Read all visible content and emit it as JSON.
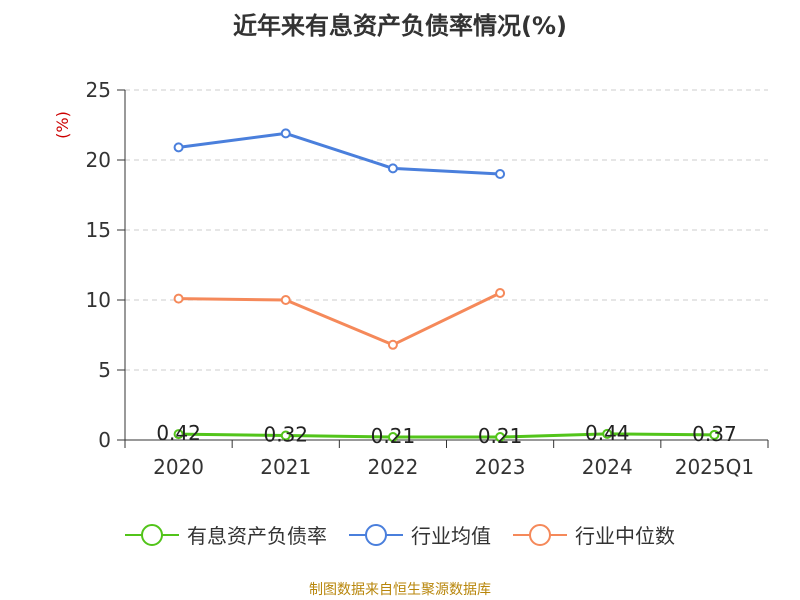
{
  "chart_data": {
    "type": "line",
    "title": "近年来有息资产负债率情况(%)",
    "ylabel": "(%)",
    "xlabel": "",
    "categories": [
      "2020",
      "2021",
      "2022",
      "2023",
      "2024",
      "2025Q1"
    ],
    "ylim": [
      0,
      25
    ],
    "yticks": [
      0,
      5,
      10,
      15,
      20,
      25
    ],
    "grid": true,
    "legend_position": "bottom",
    "series": [
      {
        "name": "有息资产负债率",
        "color": "#52c41a",
        "values": [
          0.42,
          0.32,
          0.21,
          0.21,
          0.44,
          0.37
        ],
        "labels": [
          "0.42",
          "0.32",
          "0.21",
          "0.21",
          "0.44",
          "0.37"
        ]
      },
      {
        "name": "行业均值",
        "color": "#4a7fdc",
        "values": [
          20.9,
          21.9,
          19.4,
          19.0,
          null,
          null
        ]
      },
      {
        "name": "行业中位数",
        "color": "#f5895a",
        "values": [
          10.1,
          10.0,
          6.8,
          10.5,
          null,
          null
        ]
      }
    ]
  },
  "source": "制图数据来自恒生聚源数据库"
}
